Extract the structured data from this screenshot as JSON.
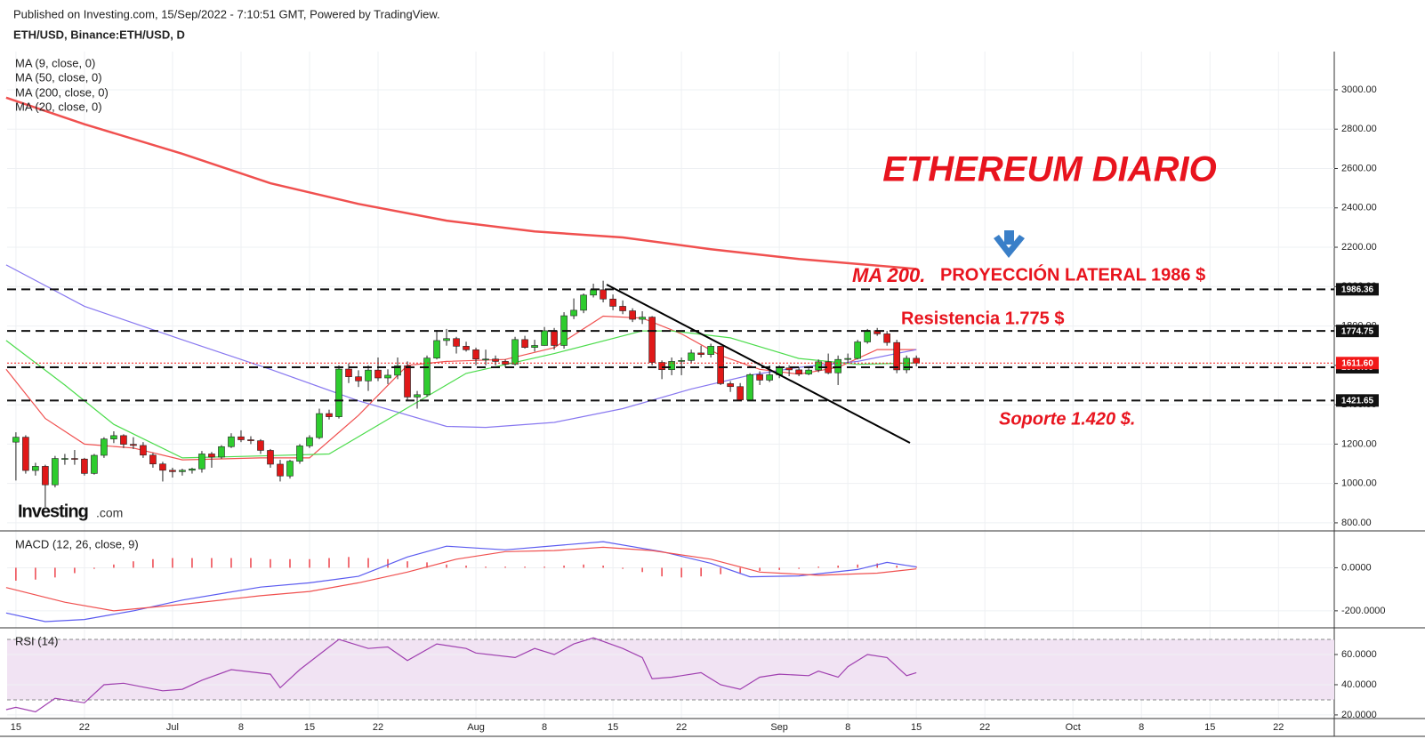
{
  "header": {
    "published": "Published on Investing.com, 15/Sep/2022 - 7:10:51 GMT, Powered by TradingView.",
    "symbol": "ETH/USD, Binance:ETH/USD, D"
  },
  "chart_data": [
    {
      "type": "candlestick",
      "annotations": [
        "ETHEREUM DIARIO",
        "MA 200.",
        "PROYECCIÓN LATERAL 1986  $",
        "Resistencia  1.775 $",
        "Soporte 1.420  $."
      ],
      "logo": "Investing",
      "logo_suffix": ".com",
      "up_color": "#2ecc2e",
      "down_color": "#e01818",
      "candles": {
        "open": [
          1210,
          1235,
          1066,
          1087,
          993,
          1127,
          1127,
          1124,
          1051,
          1143,
          1226,
          1243,
          1199,
          1193,
          1144,
          1099,
          1067,
          1060,
          1067,
          1074,
          1150,
          1134,
          1187,
          1237,
          1222,
          1217,
          1168,
          1098,
          1038,
          1113,
          1191,
          1233,
          1355,
          1339,
          1581,
          1542,
          1521,
          1576,
          1536,
          1550,
          1598,
          1439,
          1451,
          1637,
          1726,
          1736,
          1697,
          1679,
          1632,
          1632,
          1620,
          1606,
          1731,
          1691,
          1701,
          1776,
          1701,
          1852,
          1880,
          1957,
          1984,
          1937,
          1900,
          1877,
          1834,
          1845,
          1615,
          1578,
          1620,
          1625,
          1663,
          1655,
          1697,
          1507,
          1492,
          1424,
          1553,
          1525,
          1552,
          1587,
          1577,
          1556,
          1576,
          1618,
          1562,
          1630,
          1635,
          1719,
          1777,
          1760,
          1716,
          1577,
          1636
        ],
        "high": [
          1260,
          1245,
          1105,
          1095,
          1140,
          1150,
          1170,
          1130,
          1150,
          1235,
          1265,
          1250,
          1235,
          1210,
          1155,
          1110,
          1080,
          1075,
          1080,
          1165,
          1160,
          1195,
          1255,
          1270,
          1240,
          1225,
          1175,
          1120,
          1120,
          1200,
          1245,
          1380,
          1375,
          1600,
          1610,
          1575,
          1600,
          1640,
          1580,
          1640,
          1620,
          1470,
          1650,
          1780,
          1785,
          1745,
          1720,
          1690,
          1680,
          1650,
          1630,
          1745,
          1750,
          1730,
          1795,
          1790,
          1870,
          1940,
          1965,
          2015,
          2030,
          1960,
          1930,
          1890,
          1875,
          1850,
          1625,
          1640,
          1640,
          1680,
          1700,
          1710,
          1700,
          1520,
          1510,
          1560,
          1570,
          1600,
          1600,
          1600,
          1590,
          1585,
          1630,
          1660,
          1650,
          1660,
          1730,
          1785,
          1790,
          1775,
          1730,
          1650,
          1650
        ],
        "low": [
          1015,
          1050,
          1040,
          880,
          980,
          1095,
          1095,
          1040,
          1045,
          1130,
          1205,
          1180,
          1175,
          1130,
          1080,
          1010,
          1030,
          1040,
          1050,
          1055,
          1080,
          1125,
          1180,
          1210,
          1200,
          1150,
          1080,
          1010,
          1025,
          1100,
          1180,
          1225,
          1325,
          1330,
          1510,
          1490,
          1470,
          1520,
          1505,
          1530,
          1420,
          1380,
          1440,
          1630,
          1700,
          1660,
          1670,
          1600,
          1600,
          1600,
          1590,
          1600,
          1685,
          1670,
          1700,
          1680,
          1685,
          1835,
          1865,
          1945,
          1920,
          1880,
          1860,
          1820,
          1810,
          1600,
          1530,
          1550,
          1550,
          1610,
          1640,
          1640,
          1500,
          1465,
          1420,
          1425,
          1500,
          1515,
          1535,
          1545,
          1545,
          1550,
          1565,
          1555,
          1500,
          1610,
          1630,
          1710,
          1750,
          1700,
          1560,
          1560,
          1595
        ],
        "close": [
          1235,
          1066,
          1087,
          993,
          1127,
          1127,
          1124,
          1051,
          1143,
          1226,
          1243,
          1199,
          1193,
          1144,
          1099,
          1067,
          1060,
          1067,
          1074,
          1150,
          1134,
          1187,
          1237,
          1222,
          1217,
          1168,
          1098,
          1038,
          1113,
          1191,
          1233,
          1355,
          1339,
          1581,
          1542,
          1521,
          1576,
          1536,
          1550,
          1598,
          1439,
          1451,
          1637,
          1726,
          1736,
          1697,
          1679,
          1632,
          1632,
          1620,
          1606,
          1731,
          1691,
          1701,
          1776,
          1701,
          1852,
          1880,
          1957,
          1984,
          1937,
          1900,
          1877,
          1834,
          1845,
          1615,
          1578,
          1620,
          1625,
          1663,
          1655,
          1697,
          1507,
          1492,
          1424,
          1553,
          1525,
          1552,
          1587,
          1577,
          1556,
          1576,
          1618,
          1562,
          1630,
          1635,
          1719,
          1777,
          1760,
          1716,
          1577,
          1636,
          1611.6
        ]
      },
      "series": [
        {
          "name": "MA (9, close, 0)",
          "color": "#f0504f",
          "x": [
            -1,
            3,
            7,
            12,
            17,
            25,
            30,
            35,
            40,
            44,
            50,
            55,
            60,
            64,
            68,
            72,
            76,
            80,
            84,
            88,
            92
          ],
          "values": [
            1580,
            1330,
            1200,
            1180,
            1120,
            1130,
            1130,
            1346,
            1600,
            1620,
            1630,
            1690,
            1850,
            1840,
            1760,
            1650,
            1580,
            1555,
            1590,
            1680,
            1680
          ]
        },
        {
          "name": "MA (50, close, 0)",
          "color": "#8878f0",
          "x": [
            -1,
            7,
            17,
            26,
            35,
            44,
            48,
            55,
            62,
            69,
            75,
            80,
            86,
            92
          ],
          "values": [
            2110,
            1900,
            1730,
            1580,
            1420,
            1290,
            1285,
            1310,
            1380,
            1480,
            1550,
            1590,
            1620,
            1680
          ]
        },
        {
          "name": "MA (200, close, 0)",
          "color": "#f0504f",
          "x": [
            -1,
            7,
            17,
            26,
            35,
            44,
            53,
            62,
            71,
            80,
            92
          ],
          "values": [
            2960,
            2825,
            2675,
            2525,
            2420,
            2335,
            2280,
            2250,
            2190,
            2140,
            2090
          ]
        },
        {
          "name": "MA (20, close, 0)",
          "color": "#4cdc4c",
          "x": [
            -1,
            5,
            10,
            17,
            25,
            32,
            39,
            46,
            55,
            64,
            67,
            73,
            80,
            86,
            92
          ],
          "values": [
            1726,
            1500,
            1300,
            1130,
            1140,
            1150,
            1355,
            1559,
            1660,
            1775,
            1775,
            1740,
            1635,
            1605,
            1613
          ]
        }
      ],
      "levels": [
        1986.36,
        1774.75,
        1590.09,
        1421.65
      ],
      "current_price": {
        "value": 1611.6,
        "label": "1611.60",
        "color": "#f21818"
      },
      "ylim": [
        759,
        3194
      ],
      "yticks": [
        {
          "value": 800,
          "label": "800.00"
        },
        {
          "value": 1000,
          "label": "1000.00"
        },
        {
          "value": 1200,
          "label": "1200.00"
        },
        {
          "value": 1400,
          "label": "1400.00"
        },
        {
          "value": 1600,
          "label": "1600.00"
        },
        {
          "value": 1800,
          "label": "1800.00"
        },
        {
          "value": 2000,
          "label": "2000.00"
        },
        {
          "value": 2200,
          "label": "2200.00"
        },
        {
          "value": 2400,
          "label": "2400.00"
        },
        {
          "value": 2600,
          "label": "2600.00"
        },
        {
          "value": 2800,
          "label": "2800.00"
        },
        {
          "value": 3000,
          "label": "3000.00"
        }
      ],
      "xlim": [
        -0.9,
        134.7
      ],
      "xticks": [
        {
          "value": 0,
          "label": "15"
        },
        {
          "value": 7,
          "label": "22"
        },
        {
          "value": 16,
          "label": "Jul"
        },
        {
          "value": 23,
          "label": "8"
        },
        {
          "value": 30,
          "label": "15"
        },
        {
          "value": 37,
          "label": "22"
        },
        {
          "value": 47,
          "label": "Aug"
        },
        {
          "value": 54,
          "label": "8"
        },
        {
          "value": 61,
          "label": "15"
        },
        {
          "value": 68,
          "label": "22"
        },
        {
          "value": 78,
          "label": "Sep"
        },
        {
          "value": 85,
          "label": "8"
        },
        {
          "value": 92,
          "label": "15"
        },
        {
          "value": 99,
          "label": "22"
        },
        {
          "value": 108,
          "label": "Oct"
        },
        {
          "value": 115,
          "label": "8"
        },
        {
          "value": 122,
          "label": "15"
        },
        {
          "value": 129,
          "label": "22"
        }
      ],
      "grid": true
    },
    {
      "type": "macd",
      "title": "MACD (12, 26, close, 9)",
      "series": [
        {
          "color": "#5b5bf0",
          "x": [
            -1,
            3,
            7,
            12,
            17,
            25,
            30,
            35,
            40,
            44,
            50,
            60,
            66,
            71,
            75,
            80,
            86,
            89,
            92
          ],
          "values": [
            -210,
            -250,
            -240,
            -200,
            -150,
            -90,
            -70,
            -40,
            50,
            100,
            83,
            121,
            75,
            21,
            -42,
            -38,
            -8,
            25,
            4
          ]
        },
        {
          "color": "#f0504f",
          "x": [
            -1,
            5,
            10,
            17,
            25,
            30,
            35,
            40,
            45,
            50,
            55,
            60,
            65,
            71,
            76,
            82,
            88,
            92
          ],
          "values": [
            -92,
            -160,
            -200,
            -170,
            -130,
            -110,
            -70,
            -20,
            40,
            75,
            80,
            95,
            80,
            40,
            -20,
            -35,
            -25,
            -5
          ]
        }
      ],
      "histogram": {
        "color": "#e8141e",
        "x": [
          0,
          2,
          4,
          6,
          8,
          10,
          12,
          14,
          16,
          18,
          20,
          22,
          24,
          26,
          28,
          30,
          32,
          34,
          36,
          38,
          40,
          42,
          44,
          46,
          48,
          50,
          52,
          54,
          56,
          58,
          60,
          62,
          64,
          66,
          68,
          70,
          72,
          74,
          76,
          78,
          80,
          82,
          84,
          86,
          88,
          90,
          92
        ],
        "values": [
          -60,
          -55,
          -45,
          -25,
          -5,
          15,
          30,
          40,
          45,
          45,
          45,
          45,
          45,
          40,
          40,
          40,
          45,
          50,
          45,
          40,
          30,
          25,
          15,
          10,
          5,
          5,
          5,
          5,
          10,
          15,
          10,
          -5,
          -20,
          -40,
          -45,
          -40,
          -30,
          -25,
          -15,
          -10,
          -5,
          5,
          10,
          15,
          20,
          10,
          5
        ]
      },
      "ylim": [
        -279,
        167
      ],
      "yticks": [
        {
          "value": -200,
          "label": "-200.0000"
        },
        {
          "value": 0,
          "label": "0.0000"
        }
      ]
    },
    {
      "type": "rsi",
      "title": "RSI (14)",
      "color": "#a040b0",
      "band_color": "#f1e3f3",
      "band": [
        30,
        70
      ],
      "x": [
        -1,
        0,
        2,
        4,
        7,
        9,
        11,
        15,
        17,
        19,
        22,
        26,
        27,
        29,
        31,
        33,
        36,
        38,
        40,
        43,
        46,
        47,
        51,
        53,
        55,
        57,
        59,
        62,
        64,
        65,
        67,
        70,
        72,
        74,
        76,
        78,
        81,
        82,
        84,
        85,
        87,
        89,
        91,
        92
      ],
      "values": [
        23.5,
        25,
        22,
        31,
        28,
        40,
        41,
        36,
        37,
        43,
        50,
        47,
        38,
        50,
        60,
        70,
        64,
        65,
        56,
        67,
        64,
        61,
        58,
        64,
        60,
        67,
        71,
        64,
        58,
        44,
        45,
        48,
        40,
        37,
        45,
        47,
        46,
        49,
        45,
        52,
        60,
        58,
        46,
        48
      ],
      "ylim": [
        17.6,
        76.5
      ],
      "yticks": [
        {
          "value": 20,
          "label": "20.0000"
        },
        {
          "value": 40,
          "label": "40.0000"
        },
        {
          "value": 60,
          "label": "60.0000"
        }
      ]
    }
  ]
}
